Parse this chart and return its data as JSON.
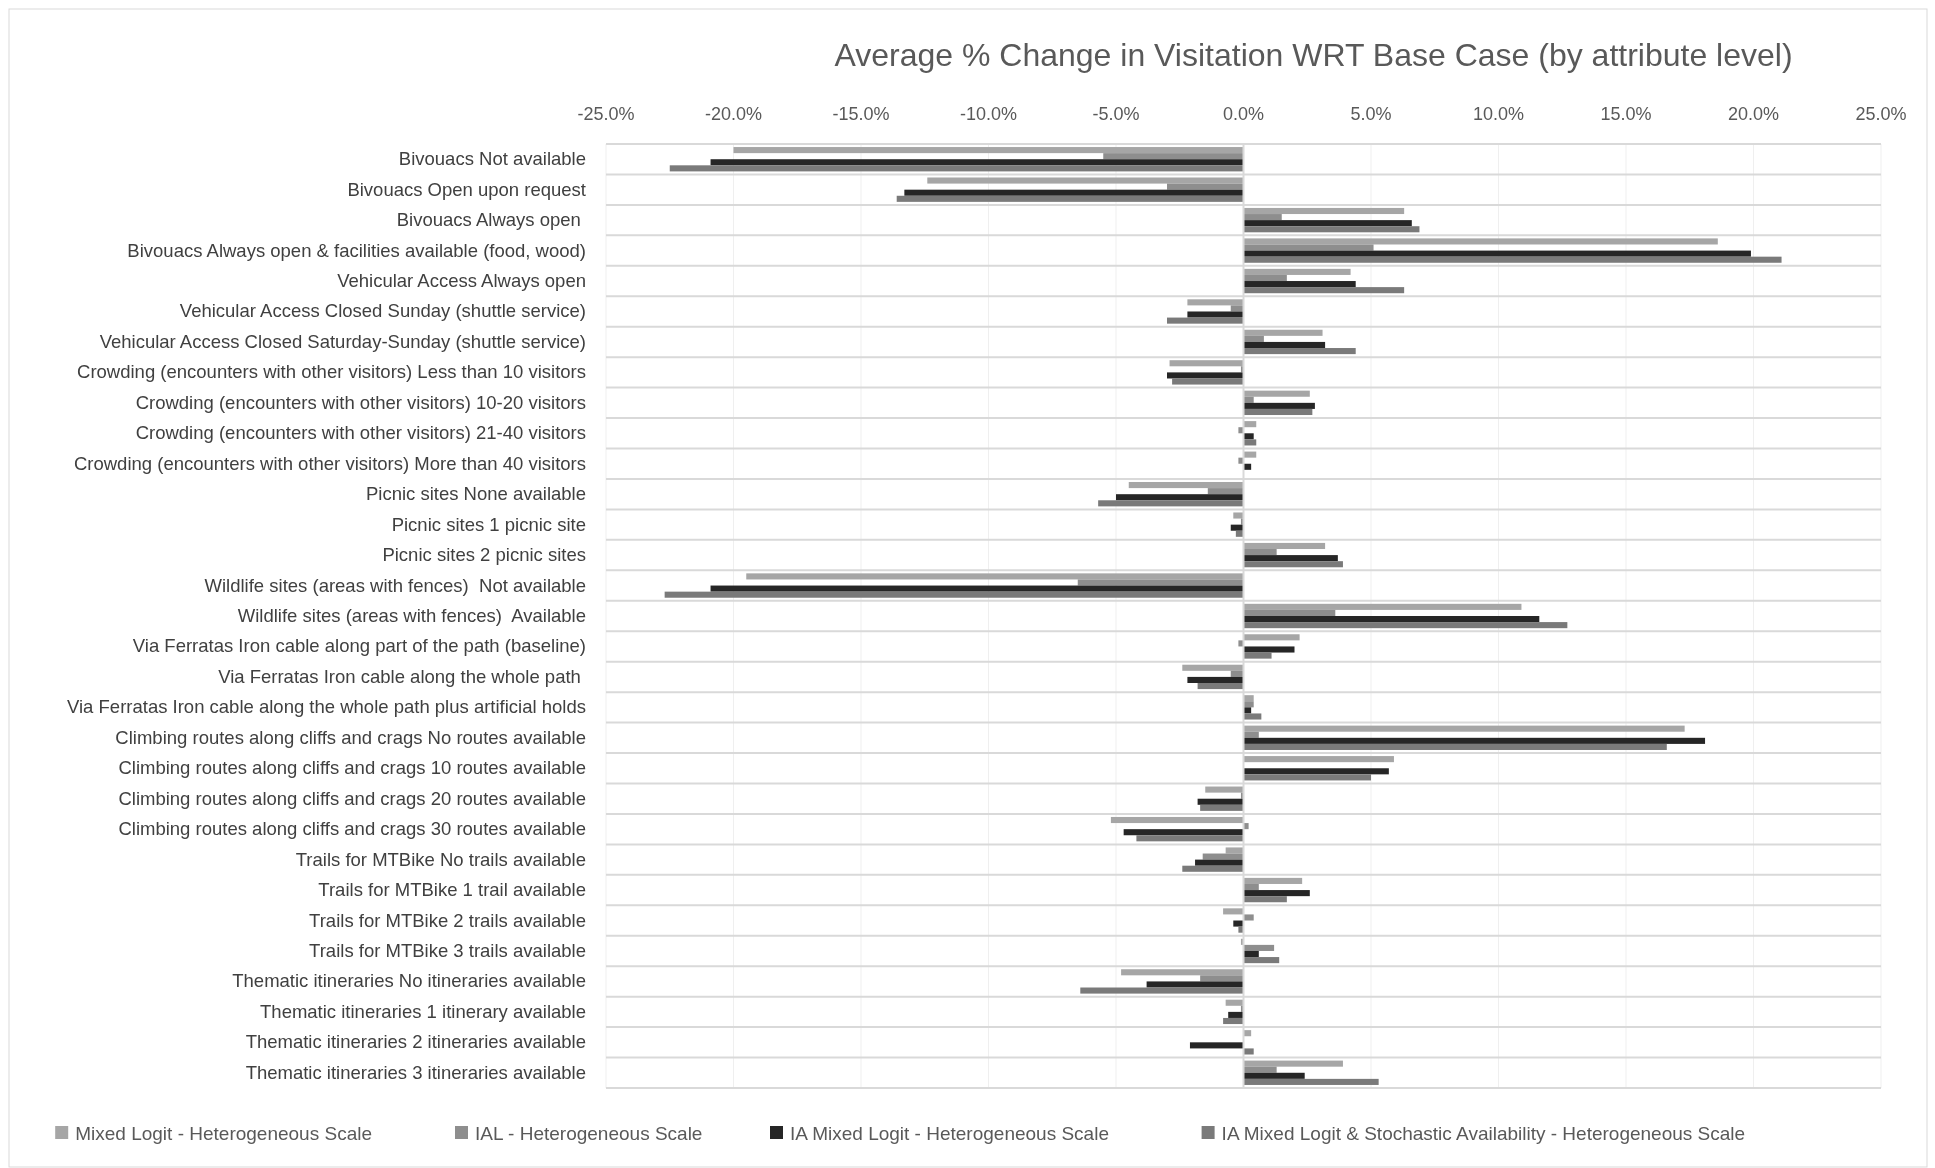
{
  "chart_data": {
    "type": "bar",
    "orientation": "horizontal",
    "title": "Average % Change in Visitation WRT Base Case (by attribute level)",
    "categories": [
      "Bivouacs Not available",
      "Bivouacs Open upon request",
      "Bivouacs Always open ",
      "Bivouacs Always open & facilities available (food, wood)",
      "Vehicular Access Always open",
      "Vehicular Access Closed Sunday (shuttle service)",
      "Vehicular Access Closed Saturday-Sunday (shuttle service)",
      "Crowding (encounters with other visitors) Less than 10 visitors",
      "Crowding (encounters with other visitors) 10-20 visitors",
      "Crowding (encounters with other visitors) 21-40 visitors",
      "Crowding (encounters with other visitors) More than 40 visitors",
      "Picnic sites None available",
      "Picnic sites 1 picnic site",
      "Picnic sites 2 picnic sites",
      "Wildlife sites (areas with fences)  Not available",
      "Wildlife sites (areas with fences)  Available",
      "Via Ferratas Iron cable along part of the path (baseline)",
      "Via Ferratas Iron cable along the whole path ",
      "Via Ferratas Iron cable along the whole path plus artificial holds",
      "Climbing routes along cliffs and crags No routes available",
      "Climbing routes along cliffs and crags 10 routes available",
      "Climbing routes along cliffs and crags 20 routes available",
      "Climbing routes along cliffs and crags 30 routes available",
      "Trails for MTBike No trails available",
      "Trails for MTBike 1 trail available",
      "Trails for MTBike 2 trails available",
      "Trails for MTBike 3 trails available",
      "Thematic itineraries No itineraries available",
      "Thematic itineraries 1 itinerary available",
      "Thematic itineraries 2 itineraries available",
      "Thematic itineraries 3 itineraries available"
    ],
    "series": [
      {
        "name": "Mixed Logit - Heterogeneous Scale",
        "color": "#a6a6a6",
        "values": [
          -20.0,
          -12.4,
          6.3,
          18.6,
          4.2,
          -2.2,
          3.1,
          -2.9,
          2.6,
          0.5,
          0.5,
          -4.5,
          -0.4,
          3.2,
          -19.5,
          10.9,
          2.2,
          -2.4,
          0.4,
          17.3,
          5.9,
          -1.5,
          -5.2,
          -0.7,
          2.3,
          -0.8,
          -0.1,
          -4.8,
          -0.7,
          0.3,
          3.9
        ]
      },
      {
        "name": "IAL - Heterogeneous Scale",
        "color": "#8e8e8e",
        "values": [
          -5.5,
          -3.0,
          1.5,
          5.1,
          1.7,
          -0.5,
          0.8,
          -0.1,
          0.4,
          -0.2,
          -0.2,
          -1.4,
          -0.1,
          1.3,
          -6.5,
          3.6,
          -0.2,
          -0.5,
          0.4,
          0.6,
          null,
          -0.1,
          0.2,
          -1.6,
          0.6,
          0.4,
          1.2,
          -1.7,
          -0.1,
          0.0,
          1.3
        ]
      },
      {
        "name": "IA Mixed Logit - Heterogeneous Scale",
        "color": "#262626",
        "values": [
          -20.9,
          -13.3,
          6.6,
          19.9,
          4.4,
          -2.2,
          3.2,
          -3.0,
          2.8,
          0.4,
          0.3,
          -5.0,
          -0.5,
          3.7,
          -20.9,
          11.6,
          2.0,
          -2.2,
          0.3,
          18.1,
          5.7,
          -1.8,
          -4.7,
          -1.9,
          2.6,
          -0.4,
          0.6,
          -3.8,
          -0.6,
          -2.1,
          2.4
        ]
      },
      {
        "name": "IA Mixed Logit & Stochastic Availability - Heterogeneous Scale",
        "color": "#7a7a7a",
        "values": [
          -22.5,
          -13.6,
          6.9,
          21.1,
          6.3,
          -3.0,
          4.4,
          -2.8,
          2.7,
          0.5,
          0.0,
          -5.7,
          -0.3,
          3.9,
          -22.7,
          12.7,
          1.1,
          -1.8,
          0.7,
          16.6,
          5.0,
          -1.7,
          -4.2,
          -2.4,
          1.7,
          -0.2,
          1.4,
          -6.4,
          -0.8,
          0.4,
          5.3
        ]
      }
    ],
    "xlim": [
      -25,
      25
    ],
    "xticks": [
      {
        "value": -25,
        "label": "-25.0%"
      },
      {
        "value": -20,
        "label": "-20.0%"
      },
      {
        "value": -15,
        "label": "-15.0%"
      },
      {
        "value": -10,
        "label": "-10.0%"
      },
      {
        "value": -5,
        "label": "-5.0%"
      },
      {
        "value": 0,
        "label": "0.0%"
      },
      {
        "value": 5,
        "label": "5.0%"
      },
      {
        "value": 10,
        "label": "10.0%"
      },
      {
        "value": 15,
        "label": "15.0%"
      },
      {
        "value": 20,
        "label": "20.0%"
      },
      {
        "value": 25,
        "label": "25.0%"
      }
    ],
    "grid": true,
    "legend": "bottom"
  }
}
